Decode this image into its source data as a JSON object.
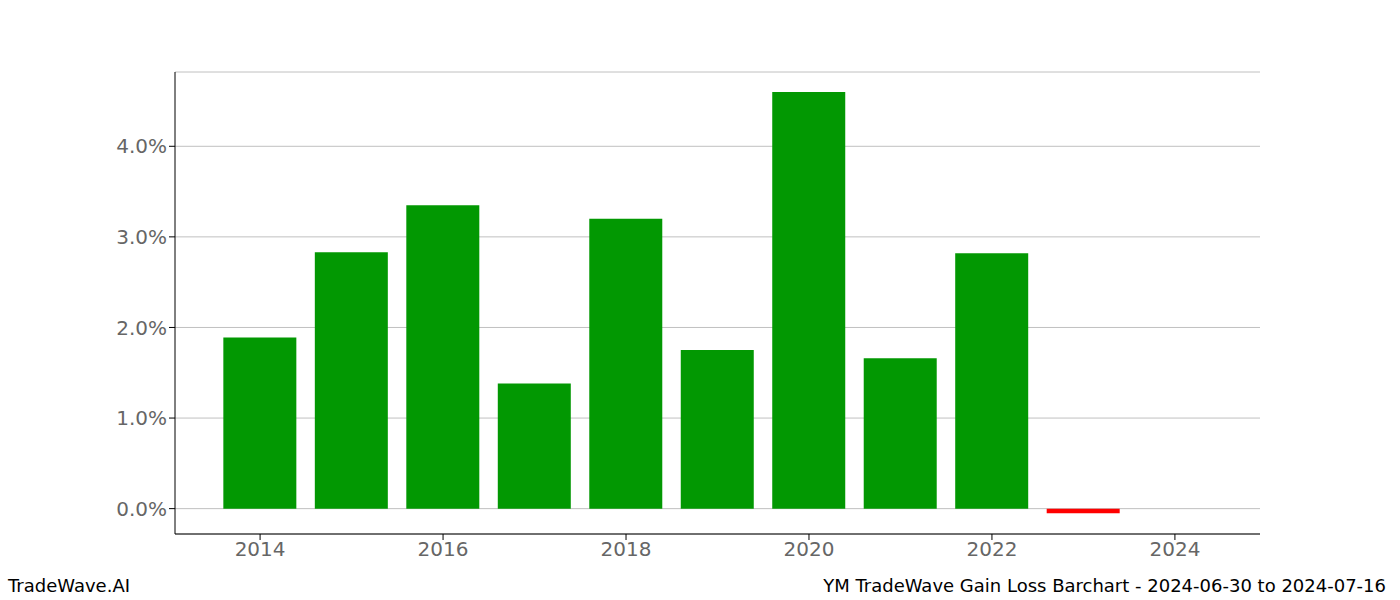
{
  "chart_data": {
    "type": "bar",
    "title": "YM TradeWave Gain Loss Barchart - 2024-06-30 to 2024-07-16",
    "watermark": "TradeWave.AI",
    "x": [
      2014,
      2015,
      2016,
      2017,
      2018,
      2019,
      2020,
      2021,
      2022,
      2023
    ],
    "values": [
      1.89,
      2.83,
      3.35,
      1.38,
      3.2,
      1.75,
      4.6,
      1.66,
      2.82,
      -0.05
    ],
    "colors": [
      "#029802",
      "#029802",
      "#029802",
      "#029802",
      "#029802",
      "#029802",
      "#029802",
      "#029802",
      "#029802",
      "#ff0000"
    ],
    "xlim": [
      2013.07,
      2024.93
    ],
    "xticks": [
      2014,
      2016,
      2018,
      2020,
      2022,
      2024
    ],
    "ylim": [
      -0.28,
      4.82
    ],
    "yticks": [
      {
        "value": 0,
        "label": "0.0%"
      },
      {
        "value": 1,
        "label": "1.0%"
      },
      {
        "value": 2,
        "label": "2.0%"
      },
      {
        "value": 3,
        "label": "3.0%"
      },
      {
        "value": 4,
        "label": "4.0%"
      }
    ],
    "grid": true
  }
}
